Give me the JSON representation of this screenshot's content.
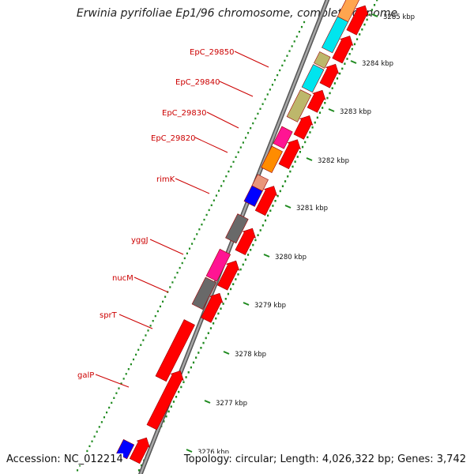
{
  "title": "Erwinia pyrifoliae Ep1/96 chromosome, complete genome",
  "footer": {
    "accession": "Accession: NC_012214",
    "stats": "Topology: circular; Length: 4,026,322 bp; Genes: 3,742"
  },
  "colors": {
    "cds_red": "#ff0000",
    "backbone": "#808080",
    "tick_green": "#1f8a1f",
    "label_red": "#cc0000"
  },
  "ticks": [
    {
      "label": "3276 kbp"
    },
    {
      "label": "3277 kbp"
    },
    {
      "label": "3278 kbp"
    },
    {
      "label": "3279 kbp"
    },
    {
      "label": "3280 kbp"
    },
    {
      "label": "3281 kbp"
    },
    {
      "label": "3282 kbp"
    },
    {
      "label": "3283 kbp"
    },
    {
      "label": "3284 kbp"
    },
    {
      "label": "3285 kbp"
    }
  ],
  "gene_labels": [
    "EpC_29850",
    "EpC_29840",
    "EpC_29830",
    "EpC_29820",
    "rimK",
    "yggJ",
    "nucM",
    "sprT",
    "galP"
  ],
  "cog_colors": [
    "#00e5ee",
    "#bdb76b",
    "#ff1493",
    "#ff8c00",
    "#e9967a",
    "#0000ff",
    "#696969",
    "#ffa54f"
  ]
}
